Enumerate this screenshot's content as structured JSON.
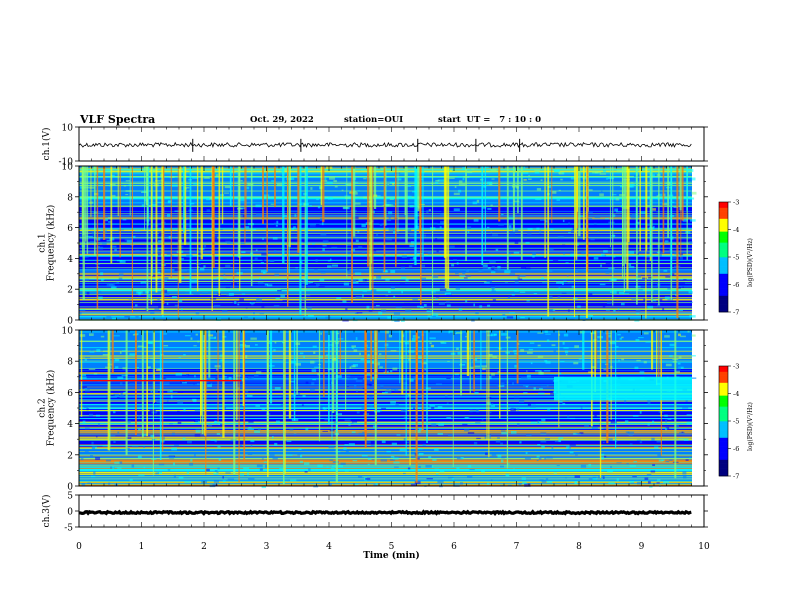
{
  "header": {
    "title": "VLF Spectra",
    "date": "Oct. 29, 2022",
    "station": "station=OUI",
    "start": "start  UT =   7 : 10 : 0"
  },
  "chart_data": [
    {
      "type": "line",
      "ylabel": "ch.1(V)",
      "ylim": [
        -10,
        10
      ],
      "yticks": [
        "10",
        "-10"
      ],
      "baseline": -0.5,
      "spikes_min": [
        1.82,
        3.55,
        5.42,
        6.35,
        7.05
      ]
    },
    {
      "type": "heatmap",
      "ylabel": "ch.1\nFrequency (kHz)",
      "ylim": [
        0,
        10
      ],
      "yticks": [
        "0",
        "2",
        "4",
        "6",
        "8",
        "10"
      ],
      "colorbar": {
        "label": "log(PSD)(V²/Hz)",
        "range": [
          -7,
          -3
        ],
        "ticks": [
          "-3",
          "-4",
          "-5",
          "-6",
          "-7"
        ]
      }
    },
    {
      "type": "heatmap",
      "ylabel": "ch.2\nFrequency (kHz)",
      "ylim": [
        0,
        10
      ],
      "yticks": [
        "0",
        "2",
        "4",
        "6",
        "8",
        "10"
      ],
      "colorbar": {
        "label": "log(PSD)(V²/Hz)",
        "range": [
          -7,
          -3
        ],
        "ticks": [
          "-3",
          "-4",
          "-5",
          "-6",
          "-7"
        ]
      }
    },
    {
      "type": "line",
      "ylabel": "ch.3(V)",
      "ylim": [
        -5,
        5
      ],
      "yticks": [
        "5",
        "0",
        "-5"
      ],
      "baseline": -0.5
    }
  ],
  "xaxis": {
    "label": "Time (min)",
    "xlim": [
      0,
      10
    ],
    "ticks": [
      "0",
      "1",
      "2",
      "3",
      "4",
      "5",
      "6",
      "7",
      "8",
      "9",
      "10"
    ]
  },
  "colors": {
    "colormap": [
      "#00007f",
      "#0000ff",
      "#007fff",
      "#00ffff",
      "#7fff7f",
      "#ffff00",
      "#ff7f00",
      "#ff0000"
    ],
    "trace": "#000000"
  }
}
